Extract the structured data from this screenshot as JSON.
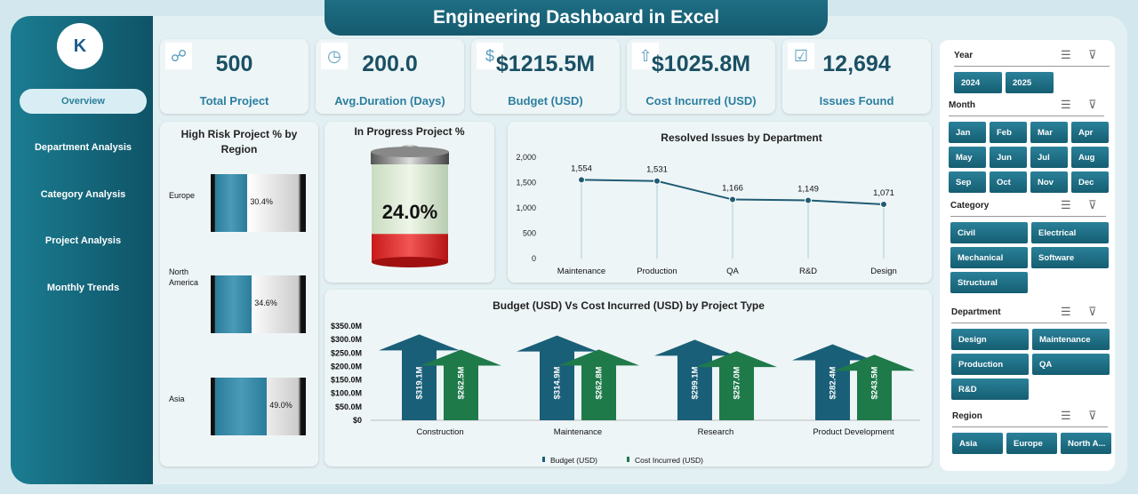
{
  "title": "Engineering Dashboard in Excel",
  "logo_text": "K",
  "nav": [
    {
      "label": "Overview",
      "active": true
    },
    {
      "label": "Department Analysis"
    },
    {
      "label": "Category Analysis"
    },
    {
      "label": "Project Analysis"
    },
    {
      "label": "Monthly Trends"
    }
  ],
  "kpis": [
    {
      "value": "500",
      "label": "Total Project",
      "icon": "people-network-icon"
    },
    {
      "value": "200.0",
      "label": "Avg.Duration (Days)",
      "icon": "clock-document-icon"
    },
    {
      "value": "$1215.5M",
      "label": "Budget (USD)",
      "icon": "money-bag-icon"
    },
    {
      "value": "$1025.8M",
      "label": "Cost Incurred (USD)",
      "icon": "cost-growth-icon"
    },
    {
      "value": "12,694",
      "label": "Issues Found",
      "icon": "clipboard-warning-icon"
    }
  ],
  "high_risk": {
    "title": "High Risk Project % by Region",
    "regions": [
      {
        "name": "Europe",
        "label": "30.4%",
        "value": 30.4
      },
      {
        "name": "North America",
        "label": "34.6%",
        "value": 34.6
      },
      {
        "name": "Asia",
        "label": "49.0%",
        "value": 49.0
      }
    ]
  },
  "in_progress": {
    "title": "In Progress Project %",
    "label": "24.0%",
    "value": 24.0
  },
  "chart_data": [
    {
      "type": "line",
      "title": "Resolved Issues by Department",
      "categories": [
        "Maintenance",
        "Production",
        "QA",
        "R&D",
        "Design"
      ],
      "values": [
        1554,
        1531,
        1166,
        1149,
        1071
      ],
      "data_labels": [
        "1,554",
        "1,531",
        "1,166",
        "1,149",
        "1,071"
      ],
      "ylim": [
        0,
        2000
      ],
      "yticks": [
        "0",
        "500",
        "1,000",
        "1,500",
        "2,000"
      ],
      "color": "#1f5c73"
    },
    {
      "type": "bar",
      "title": "Budget (USD) Vs Cost Incurred (USD) by Project Type",
      "categories": [
        "Construction",
        "Maintenance",
        "Research",
        "Product Development"
      ],
      "series": [
        {
          "name": "Budget (USD)",
          "values": [
            319.1,
            314.9,
            299.1,
            282.4
          ],
          "labels": [
            "$319.1M",
            "$314.9M",
            "$299.1M",
            "$282.4M"
          ],
          "color": "#1a5f78"
        },
        {
          "name": "Cost Incurred (USD)",
          "values": [
            262.5,
            262.8,
            257.0,
            243.5
          ],
          "labels": [
            "$262.5M",
            "$262.8M",
            "$257.0M",
            "$243.5M"
          ],
          "color": "#1f7a4a"
        }
      ],
      "ylim": [
        0,
        350
      ],
      "yticks": [
        "$0",
        "$50.0M",
        "$100.0M",
        "$150.0M",
        "$200.0M",
        "$250.0M",
        "$300.0M",
        "$350.0M"
      ],
      "legend": "bottom"
    }
  ],
  "slicers": [
    {
      "title": "Year",
      "items": [
        "2024",
        "2025"
      ]
    },
    {
      "title": "Month",
      "items": [
        "Jan",
        "Feb",
        "Mar",
        "Apr",
        "May",
        "Jun",
        "Jul",
        "Aug",
        "Sep",
        "Oct",
        "Nov",
        "Dec"
      ]
    },
    {
      "title": "Category",
      "items": [
        "Civil",
        "Electrical",
        "Mechanical",
        "Software",
        "Structural"
      ]
    },
    {
      "title": "Department",
      "items": [
        "Design",
        "Maintenance",
        "Production",
        "QA",
        "R&D"
      ]
    },
    {
      "title": "Region",
      "items": [
        "Asia",
        "Europe",
        "North A..."
      ]
    }
  ]
}
